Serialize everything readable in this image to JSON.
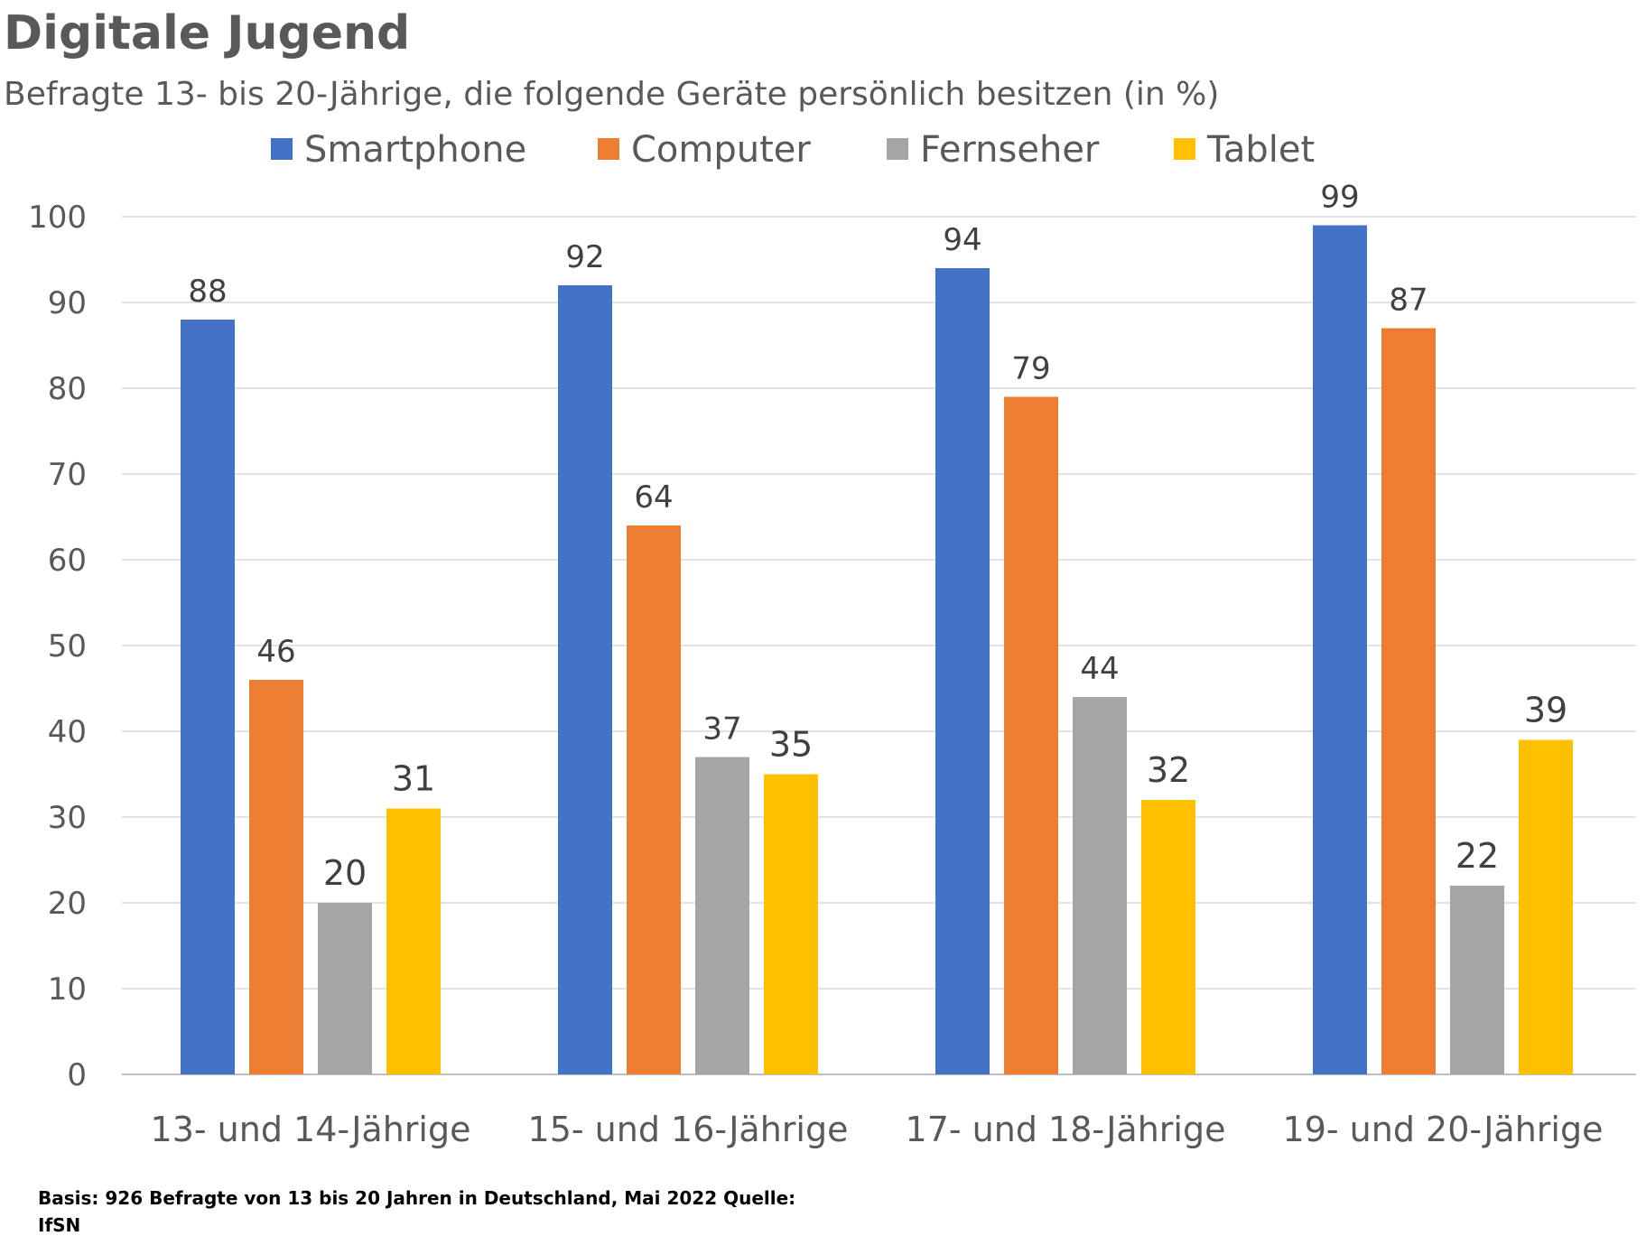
{
  "chart_data": {
    "type": "bar",
    "title": "Digitale Jugend",
    "subtitle": "Befragte 13- bis 20-Jährige, die folgende Geräte persönlich besitzen (in %)",
    "categories": [
      "13- und 14-Jährige",
      "15- und 16-Jährige",
      "17- und 18-Jährige",
      "19- und 20-Jährige"
    ],
    "series": [
      {
        "name": "Smartphone",
        "color": "#4472C4",
        "values": [
          88,
          92,
          94,
          99
        ]
      },
      {
        "name": "Computer",
        "color": "#ED7D31",
        "values": [
          46,
          64,
          79,
          87
        ]
      },
      {
        "name": "Fernseher",
        "color": "#A5A5A5",
        "values": [
          20,
          37,
          44,
          22
        ]
      },
      {
        "name": "Tablet",
        "color": "#FFC000",
        "values": [
          31,
          35,
          32,
          39
        ]
      }
    ],
    "ylim": [
      0,
      100
    ],
    "yticks": [
      "0",
      "10",
      "20",
      "30",
      "40",
      "50",
      "60",
      "70",
      "80",
      "90",
      "100"
    ],
    "grid": true,
    "legend_position": "top",
    "footnote_line1": "Basis: 926 Befragte von 13 bis 20 Jahren in Deutschland, Mai 2022 Quelle:",
    "footnote_line2": "IfSN"
  }
}
